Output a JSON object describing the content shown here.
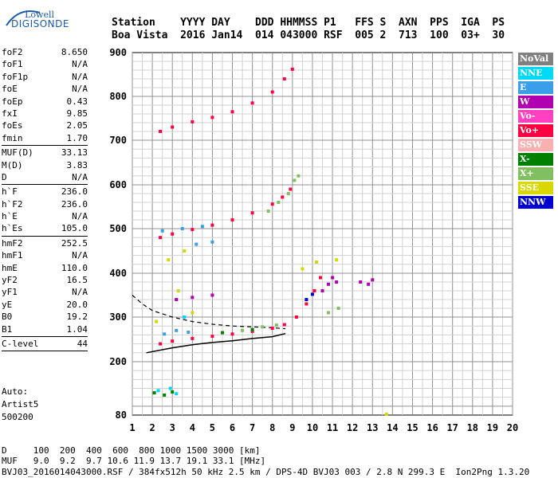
{
  "logo": {
    "line1": "Lowell",
    "line2": "DIGISONDE"
  },
  "header": {
    "line1": "Station    YYYY DAY    DDD HHMMSS P1   FFS S  AXN  PPS  IGA  PS",
    "line2": "Boa Vista  2016 Jan14  014 043000 RSF  005 2  713  100  03+  30"
  },
  "params": {
    "group1": [
      {
        "k": "foF2",
        "v": "8.650"
      },
      {
        "k": "foF1",
        "v": "N/A"
      },
      {
        "k": "foF1p",
        "v": "N/A"
      },
      {
        "k": "foE",
        "v": "N/A"
      },
      {
        "k": "foEp",
        "v": "0.43"
      },
      {
        "k": "fxI",
        "v": "9.85"
      },
      {
        "k": "foEs",
        "v": "2.05"
      },
      {
        "k": "fmin",
        "v": "1.70"
      }
    ],
    "group2": [
      {
        "k": "MUF(D)",
        "v": "33.13"
      },
      {
        "k": "M(D)",
        "v": "3.83"
      },
      {
        "k": "D",
        "v": "N/A"
      }
    ],
    "group3": [
      {
        "k": "h`F",
        "v": "236.0"
      },
      {
        "k": "h`F2",
        "v": "236.0"
      },
      {
        "k": "h`E",
        "v": "N/A"
      },
      {
        "k": "h`Es",
        "v": "105.0"
      }
    ],
    "group4": [
      {
        "k": "hmF2",
        "v": "252.5"
      },
      {
        "k": "hmF1",
        "v": "N/A"
      },
      {
        "k": "hmE",
        "v": "110.0"
      },
      {
        "k": "yF2",
        "v": "16.5"
      },
      {
        "k": "yF1",
        "v": "N/A"
      },
      {
        "k": "yE",
        "v": "20.0"
      },
      {
        "k": "B0",
        "v": "19.2"
      },
      {
        "k": "B1",
        "v": "1.04"
      }
    ],
    "group5": [
      {
        "k": "C-level",
        "v": "44"
      }
    ]
  },
  "auto": {
    "line1": "Auto:",
    "line2": "Artist5",
    "line3": "500200"
  },
  "legend": [
    {
      "label": "NoVal",
      "bg": "#808080",
      "fg": "#ffffff"
    },
    {
      "label": "NNE",
      "bg": "#00d8f8",
      "fg": "#ffffff"
    },
    {
      "label": "E",
      "bg": "#3a9ee8",
      "fg": "#ffffff"
    },
    {
      "label": "W",
      "bg": "#b000b0",
      "fg": "#ffffff"
    },
    {
      "label": "Vo-",
      "bg": "#ff40c0",
      "fg": "#ffffff"
    },
    {
      "label": "Vo+",
      "bg": "#ff0040",
      "fg": "#ffffff"
    },
    {
      "label": "SSW",
      "bg": "#f8b0b0",
      "fg": "#ffffff"
    },
    {
      "label": "X-",
      "bg": "#008000",
      "fg": "#ffffff"
    },
    {
      "label": "X+",
      "bg": "#80c060",
      "fg": "#ffffff"
    },
    {
      "label": "SSE",
      "bg": "#d8d800",
      "fg": "#ffffff"
    },
    {
      "label": "NNW",
      "bg": "#0000d0",
      "fg": "#ffffff"
    }
  ],
  "footer": {
    "line1": "D     100  200  400  600  800 1000 1500 3000 [km]",
    "line2": "MUF   9.0  9.2  9.7 10.6 11.9 13.7 19.1 33.1 [MHz]",
    "line3": "BVJ03_2016014043000.RSF / 384fx512h 50 kHz 2.5 km / DPS-4D BVJ03 003 / 2.8 N 299.3 E  Ion2Png 1.3.20"
  },
  "chart_data": {
    "type": "scatter",
    "title": "",
    "xlabel": "",
    "ylabel": "",
    "xlim": [
      1,
      20
    ],
    "ylim": [
      80,
      900
    ],
    "x_ticks": [
      1,
      2,
      3,
      4,
      5,
      6,
      7,
      8,
      9,
      10,
      11,
      12,
      13,
      14,
      15,
      16,
      17,
      18,
      19,
      20
    ],
    "y_ticks": [
      80,
      200,
      300,
      400,
      500,
      600,
      700,
      800,
      900
    ],
    "grid": true,
    "series": [
      {
        "name": "Vo+",
        "color": "#ff0040",
        "points": [
          [
            2.4,
            240
          ],
          [
            3,
            246
          ],
          [
            4,
            252
          ],
          [
            5,
            257
          ],
          [
            6,
            262
          ],
          [
            7,
            268
          ],
          [
            8,
            275
          ],
          [
            8.6,
            283
          ],
          [
            9.2,
            300
          ],
          [
            9.7,
            330
          ],
          [
            10.1,
            360
          ],
          [
            10.4,
            390
          ],
          [
            2.4,
            480
          ],
          [
            3,
            488
          ],
          [
            4,
            498
          ],
          [
            5,
            508
          ],
          [
            6,
            520
          ],
          [
            7,
            536
          ],
          [
            8,
            556
          ],
          [
            8.5,
            572
          ],
          [
            8.9,
            590
          ],
          [
            2.4,
            720
          ],
          [
            3,
            730
          ],
          [
            4,
            742
          ],
          [
            5,
            752
          ],
          [
            6,
            765
          ],
          [
            7,
            785
          ],
          [
            8,
            810
          ],
          [
            8.6,
            840
          ],
          [
            9,
            862
          ]
        ]
      },
      {
        "name": "W",
        "color": "#b000b0",
        "points": [
          [
            3.2,
            340
          ],
          [
            4,
            345
          ],
          [
            5,
            350
          ],
          [
            10.5,
            360
          ],
          [
            10.8,
            375
          ],
          [
            11,
            390
          ],
          [
            11.2,
            380
          ],
          [
            12.4,
            380
          ],
          [
            12.8,
            375
          ],
          [
            13,
            385
          ]
        ]
      },
      {
        "name": "X+",
        "color": "#80c060",
        "points": [
          [
            7.8,
            540
          ],
          [
            8.3,
            560
          ],
          [
            8.8,
            580
          ],
          [
            9.1,
            610
          ],
          [
            9.3,
            620
          ],
          [
            6.5,
            270
          ],
          [
            7.5,
            278
          ],
          [
            8.2,
            282
          ],
          [
            10.8,
            310
          ],
          [
            11.3,
            320
          ]
        ]
      },
      {
        "name": "E",
        "color": "#3a9ee8",
        "points": [
          [
            2.5,
            495
          ],
          [
            3.5,
            500
          ],
          [
            4.5,
            505
          ],
          [
            5,
            470
          ],
          [
            4.2,
            465
          ],
          [
            2.6,
            262
          ],
          [
            3.2,
            270
          ],
          [
            3.8,
            266
          ]
        ]
      },
      {
        "name": "SSE",
        "color": "#d8d800",
        "points": [
          [
            2.8,
            430
          ],
          [
            3.3,
            360
          ],
          [
            4,
            310
          ],
          [
            2.2,
            290
          ],
          [
            3.6,
            450
          ],
          [
            9.5,
            410
          ],
          [
            10.2,
            425
          ],
          [
            11.2,
            430
          ],
          [
            13.7,
            82
          ]
        ]
      },
      {
        "name": "X-",
        "color": "#008000",
        "points": [
          [
            2.1,
            130
          ],
          [
            2.6,
            125
          ],
          [
            3,
            132
          ],
          [
            5.5,
            265
          ],
          [
            7,
            272
          ]
        ]
      },
      {
        "name": "NNE",
        "color": "#00d8f8",
        "points": [
          [
            2.3,
            135
          ],
          [
            2.9,
            140
          ],
          [
            3.2,
            128
          ],
          [
            3.6,
            300
          ]
        ]
      },
      {
        "name": "NNW",
        "color": "#0000d0",
        "points": [
          [
            9.7,
            340
          ],
          [
            10,
            352
          ]
        ]
      }
    ],
    "profile_curve": [
      [
        1.7,
        220
      ],
      [
        3,
        231
      ],
      [
        4,
        238
      ],
      [
        5,
        243
      ],
      [
        6,
        247
      ],
      [
        7,
        252
      ],
      [
        8,
        256
      ],
      [
        8.65,
        263
      ]
    ],
    "dashed_curve": [
      [
        1,
        350
      ],
      [
        1.5,
        330
      ],
      [
        2,
        315
      ],
      [
        3,
        300
      ],
      [
        4,
        290
      ],
      [
        5,
        284
      ],
      [
        6,
        280
      ],
      [
        7,
        278
      ],
      [
        8,
        276
      ],
      [
        8.65,
        274
      ]
    ]
  }
}
